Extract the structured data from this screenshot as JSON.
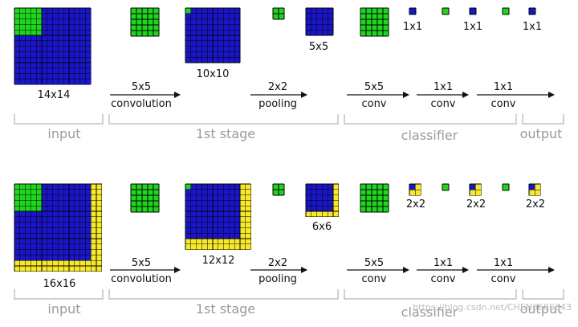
{
  "colors": {
    "blue": "#1a16c8",
    "green": "#1fd61f",
    "yellow": "#f7e92a",
    "grid_line": "#000000",
    "arrow": "#111111",
    "bracket": "#b5b5b5",
    "stage_text": "#9a9a9a"
  },
  "rows": [
    {
      "size_labels": {
        "input": "14x14",
        "conv_output": "10x10",
        "pool_output": "5x5",
        "classifier_outputs": [
          "1x1",
          "1x1",
          "1x1"
        ]
      },
      "operations": [
        {
          "top": "5x5",
          "bottom": "convolution"
        },
        {
          "top": "2x2",
          "bottom": "pooling"
        },
        {
          "top": "5x5",
          "bottom": "conv"
        },
        {
          "top": "1x1",
          "bottom": "conv"
        },
        {
          "top": "1x1",
          "bottom": "conv"
        }
      ],
      "stages": [
        "input",
        "1st stage",
        "classifier",
        "output"
      ]
    },
    {
      "size_labels": {
        "input": "16x16",
        "conv_output": "12x12",
        "pool_output": "6x6",
        "classifier_outputs": [
          "2x2",
          "2x2",
          "2x2"
        ]
      },
      "operations": [
        {
          "top": "5x5",
          "bottom": "convolution"
        },
        {
          "top": "2x2",
          "bottom": "pooling"
        },
        {
          "top": "5x5",
          "bottom": "conv"
        },
        {
          "top": "1x1",
          "bottom": "conv"
        },
        {
          "top": "1x1",
          "bottom": "conv"
        }
      ],
      "stages": [
        "input",
        "1st stage",
        "classifier",
        "output"
      ]
    }
  ],
  "watermark": "https://blog.csdn.net/CHEN6686643"
}
